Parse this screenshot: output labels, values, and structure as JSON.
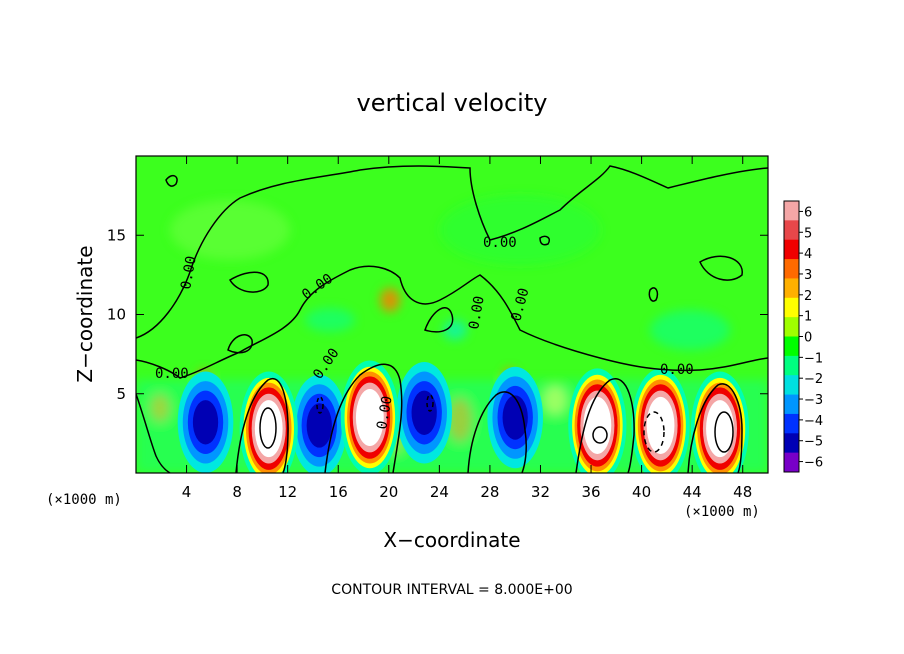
{
  "chart_data": {
    "type": "heatmap",
    "title": "vertical velocity",
    "xlabel": "X−coordinate",
    "ylabel": "Z−coordinate",
    "x_unit": "(×1000 m)",
    "y_unit": "(×1000 m)",
    "xlim": [
      0,
      50
    ],
    "ylim": [
      0,
      20
    ],
    "x_ticks": [
      4,
      8,
      12,
      16,
      20,
      24,
      28,
      32,
      36,
      40,
      44,
      48
    ],
    "y_ticks": [
      5,
      10,
      15
    ],
    "colorbar": {
      "min": -6,
      "max": 6,
      "ticks": [
        "6",
        "5",
        "4",
        "3",
        "2",
        "1",
        "0",
        "−1",
        "−2",
        "−3",
        "−4",
        "−5",
        "−6"
      ],
      "colors": [
        "#f4a6a6",
        "#e8474a",
        "#f00000",
        "#ff6a00",
        "#ffb000",
        "#ffff00",
        "#a0ff00",
        "#00ff00",
        "#00ff80",
        "#00e0e0",
        "#0096ff",
        "#0032ff",
        "#0000b4",
        "#7800c8"
      ]
    },
    "contour_interval": "CONTOUR INTERVAL = 8.000E+00",
    "contour_label": "0.00",
    "features": [
      {
        "type": "updraft",
        "x": 10.5,
        "z": 2.8,
        "w_max": 8
      },
      {
        "type": "updraft",
        "x": 18.5,
        "z": 3.5,
        "w_max": 8
      },
      {
        "type": "updraft",
        "x": 36.5,
        "z": 3.0,
        "w_max": 8
      },
      {
        "type": "updraft",
        "x": 46.2,
        "z": 2.8,
        "w_max": 8
      },
      {
        "type": "updraft",
        "x": 41.5,
        "z": 3.0,
        "w_max": 8
      },
      {
        "type": "downdraft",
        "x": 5.5,
        "z": 3.2,
        "w_min": -5
      },
      {
        "type": "downdraft",
        "x": 14.5,
        "z": 3.0,
        "w_min": -5
      },
      {
        "type": "downdraft",
        "x": 22.8,
        "z": 3.8,
        "w_min": -6
      },
      {
        "type": "downdraft",
        "x": 30.0,
        "z": 3.5,
        "w_min": -4
      }
    ]
  }
}
